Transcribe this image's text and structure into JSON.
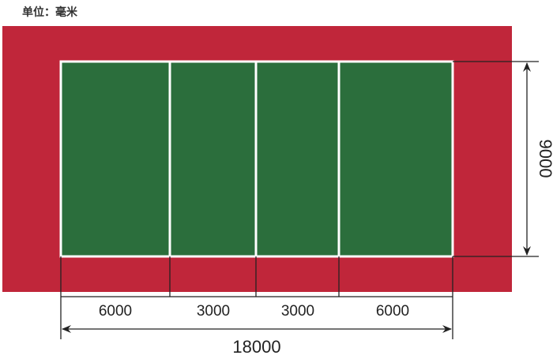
{
  "unit_label": "单位：毫米",
  "colors": {
    "surround": "#c0263a",
    "court": "#2b6e3c",
    "lines": "#ffffff",
    "dimension": "#222222"
  },
  "dimensions": {
    "width": "9000",
    "segments": [
      "6000",
      "3000",
      "3000",
      "6000"
    ],
    "total_length": "18000"
  }
}
